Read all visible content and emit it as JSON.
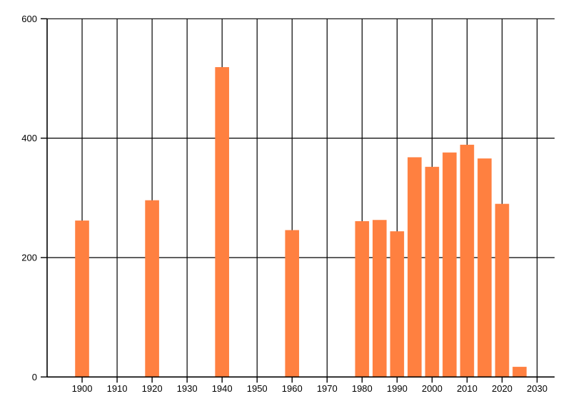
{
  "chart_data": {
    "type": "bar",
    "title": "",
    "xlabel": "",
    "ylabel": "",
    "x": [
      1900,
      1920,
      1940,
      1960,
      1980,
      1985,
      1990,
      1995,
      2000,
      2005,
      2010,
      2015,
      2020,
      2025
    ],
    "values": [
      262,
      296,
      519,
      246,
      261,
      263,
      244,
      368,
      352,
      376,
      389,
      366,
      290,
      17
    ],
    "bar_width_years": 4,
    "xlim": [
      1890,
      2035
    ],
    "ylim": [
      0,
      600
    ],
    "x_ticks": [
      1900,
      1910,
      1920,
      1930,
      1940,
      1950,
      1960,
      1970,
      1980,
      1990,
      2000,
      2010,
      2020,
      2030
    ],
    "x_tick_labels": [
      "1900",
      "1910",
      "1920",
      "1930",
      "1940",
      "1950",
      "1960",
      "1970",
      "1980",
      "1990",
      "2000",
      "2010",
      "2020",
      "2030"
    ],
    "y_ticks": [
      0,
      200,
      400,
      600
    ],
    "y_tick_labels": [
      "0",
      "200",
      "400",
      "600"
    ],
    "grid": true,
    "legend_position": "none",
    "colors": {
      "bar": "#FF8040",
      "grid": "#000000",
      "axis": "#000000",
      "text": "#000000",
      "background": "#FFFFFF"
    }
  }
}
